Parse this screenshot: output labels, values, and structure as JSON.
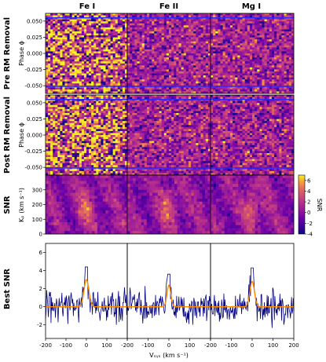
{
  "chart_data": {
    "type": "figure-grid",
    "columns": [
      "Fe I",
      "Fe II",
      "Mg I"
    ],
    "row_labels": [
      "Pre RM Removal",
      "Post RM Removal",
      "SNR",
      "Best SNR"
    ],
    "phase_panels": {
      "ylabel": "Phase ϕ",
      "yticks": [
        "0.050",
        "0.025",
        "0.000",
        "-0.025",
        "-0.050"
      ],
      "ylim": [
        -0.062,
        0.062
      ],
      "transit_phase_lines": [
        0.055,
        -0.051
      ],
      "colormap": "plasma"
    },
    "snr_map": {
      "ylabel": "Kₚ (km s⁻¹)",
      "yticks": [
        "0",
        "100",
        "200",
        "300"
      ],
      "ylim": [
        0,
        400
      ],
      "colorbar_label": "SNR",
      "colorbar_ticks": [
        "6",
        "4",
        "2",
        "0",
        "-2",
        "-4"
      ],
      "colorbar_range": [
        -4,
        7
      ],
      "colormap": "plasma"
    },
    "best_snr": {
      "yticks": [
        "6",
        "4",
        "2",
        "0",
        "-2"
      ],
      "ylim": [
        -3.5,
        7
      ],
      "series": [
        {
          "label": "Fe I",
          "peak_snr": 4.4,
          "gaussian_amplitude": 3.0,
          "gaussian_center": 0,
          "gaussian_width": 12
        },
        {
          "label": "Fe II",
          "peak_snr": 3.6,
          "gaussian_amplitude": 2.4,
          "gaussian_center": 0,
          "gaussian_width": 9
        },
        {
          "label": "Mg I",
          "peak_snr": 4.3,
          "gaussian_amplitude": 2.8,
          "gaussian_center": 0,
          "gaussian_width": 11
        }
      ],
      "colors": {
        "data": "#000080",
        "fit": "#ff8c00"
      }
    },
    "x_axis": {
      "label": "Vₛᵧₛ (km s⁻¹)",
      "ticks": [
        "-200",
        "-100",
        "0",
        "100",
        "200"
      ],
      "xlim": [
        -200,
        200
      ]
    }
  }
}
